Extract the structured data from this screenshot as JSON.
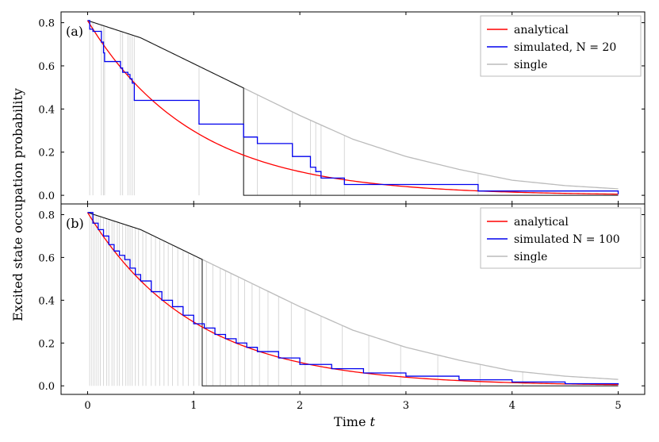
{
  "axis": {
    "xlabel_text": "Time ",
    "xlabel_var": "t",
    "ylabel": "Excited state occupation probability"
  },
  "chart_data": [
    {
      "type": "line",
      "panel_label": "(a)",
      "xlim": [
        -0.25,
        5.25
      ],
      "ylim": [
        -0.04,
        0.85
      ],
      "xticks": [
        0,
        1,
        2,
        3,
        4,
        5
      ],
      "yticks": [
        0.0,
        0.2,
        0.4,
        0.6,
        0.8
      ],
      "ytick_labels": [
        "0.0",
        "0.2",
        "0.4",
        "0.6",
        "0.8"
      ],
      "xtick_labels": [
        "0",
        "1",
        "2",
        "3",
        "4",
        "5"
      ],
      "show_xtick_labels": false,
      "legend_position": "top-right",
      "legend": [
        {
          "key": "analytical",
          "text": "analytical",
          "color": "#ff0000"
        },
        {
          "key": "simulated",
          "text": "simulated, N = 20",
          "color": "#0000ee"
        },
        {
          "key": "single",
          "text": "single",
          "color": "#bbbbbb"
        }
      ],
      "initial_value": 0.81,
      "analytical_decay_rate": 1.0,
      "single_envelope": [
        [
          0,
          0.81
        ],
        [
          0.5,
          0.73
        ],
        [
          1,
          0.61
        ],
        [
          1.5,
          0.49
        ],
        [
          2,
          0.37
        ],
        [
          2.5,
          0.26
        ],
        [
          3,
          0.18
        ],
        [
          3.5,
          0.12
        ],
        [
          4,
          0.07
        ],
        [
          4.5,
          0.045
        ],
        [
          5,
          0.03
        ]
      ],
      "black_jump_time": 1.47,
      "gray_jump_times": [
        0.02,
        0.05,
        0.13,
        0.15,
        0.16,
        0.31,
        0.33,
        0.38,
        0.4,
        0.42,
        0.44,
        1.05,
        1.47,
        1.6,
        1.93,
        2.1,
        2.15,
        2.2,
        2.42,
        3.68
      ],
      "simulated": {
        "x": [
          0,
          0.02,
          0.05,
          0.13,
          0.15,
          0.16,
          0.31,
          0.33,
          0.38,
          0.4,
          0.42,
          0.44,
          1.05,
          1.47,
          1.6,
          1.93,
          2.1,
          2.15,
          2.2,
          2.42,
          3.68,
          5.0
        ],
        "y": [
          0.81,
          0.77,
          0.76,
          0.71,
          0.66,
          0.62,
          0.59,
          0.57,
          0.56,
          0.54,
          0.52,
          0.44,
          0.33,
          0.27,
          0.24,
          0.18,
          0.13,
          0.11,
          0.08,
          0.05,
          0.02,
          0.005
        ]
      }
    },
    {
      "type": "line",
      "panel_label": "(b)",
      "xlim": [
        -0.25,
        5.25
      ],
      "ylim": [
        -0.04,
        0.85
      ],
      "xticks": [
        0,
        1,
        2,
        3,
        4,
        5
      ],
      "yticks": [
        0.0,
        0.2,
        0.4,
        0.6,
        0.8
      ],
      "ytick_labels": [
        "0.0",
        "0.2",
        "0.4",
        "0.6",
        "0.8"
      ],
      "xtick_labels": [
        "0",
        "1",
        "2",
        "3",
        "4",
        "5"
      ],
      "show_xtick_labels": true,
      "legend_position": "top-right",
      "legend": [
        {
          "key": "analytical",
          "text": "analytical",
          "color": "#ff0000"
        },
        {
          "key": "simulated",
          "text": "simulated N = 100",
          "color": "#0000ee"
        },
        {
          "key": "single",
          "text": "single",
          "color": "#bbbbbb"
        }
      ],
      "initial_value": 0.81,
      "analytical_decay_rate": 1.0,
      "single_envelope": [
        [
          0,
          0.81
        ],
        [
          0.5,
          0.73
        ],
        [
          1,
          0.61
        ],
        [
          1.5,
          0.49
        ],
        [
          2,
          0.37
        ],
        [
          2.5,
          0.26
        ],
        [
          3,
          0.18
        ],
        [
          3.5,
          0.12
        ],
        [
          4,
          0.07
        ],
        [
          4.5,
          0.045
        ],
        [
          5,
          0.03
        ]
      ],
      "black_jump_time": 1.08,
      "gray_jump_times": [
        0.02,
        0.04,
        0.06,
        0.08,
        0.1,
        0.12,
        0.15,
        0.18,
        0.2,
        0.23,
        0.25,
        0.28,
        0.3,
        0.33,
        0.36,
        0.38,
        0.4,
        0.42,
        0.45,
        0.48,
        0.52,
        0.55,
        0.6,
        0.64,
        0.68,
        0.72,
        0.76,
        0.8,
        0.85,
        0.9,
        0.95,
        1.0,
        1.05,
        1.08,
        1.12,
        1.18,
        1.25,
        1.3,
        1.35,
        1.42,
        1.48,
        1.55,
        1.62,
        1.7,
        1.8,
        1.92,
        2.05,
        2.2,
        2.4,
        2.65,
        2.95,
        3.3,
        3.7,
        4.1
      ],
      "simulated": {
        "x": [
          0,
          0.05,
          0.1,
          0.15,
          0.2,
          0.25,
          0.3,
          0.35,
          0.4,
          0.45,
          0.5,
          0.6,
          0.7,
          0.8,
          0.9,
          1.0,
          1.1,
          1.2,
          1.3,
          1.4,
          1.5,
          1.6,
          1.8,
          2.0,
          2.3,
          2.6,
          3.0,
          3.5,
          4.0,
          4.5,
          5.0
        ],
        "y": [
          0.81,
          0.76,
          0.73,
          0.7,
          0.66,
          0.63,
          0.61,
          0.59,
          0.55,
          0.52,
          0.49,
          0.44,
          0.4,
          0.37,
          0.33,
          0.29,
          0.27,
          0.24,
          0.22,
          0.2,
          0.18,
          0.16,
          0.13,
          0.1,
          0.08,
          0.06,
          0.045,
          0.028,
          0.018,
          0.01,
          0.006
        ]
      }
    }
  ]
}
